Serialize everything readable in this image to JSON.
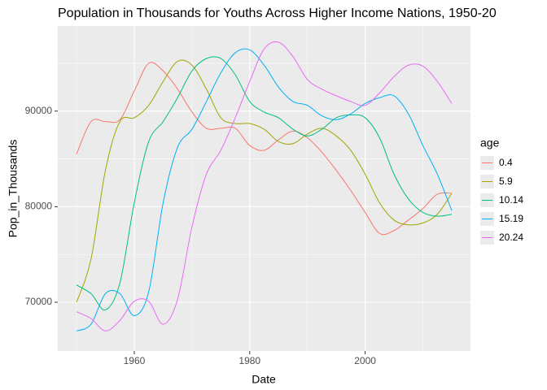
{
  "chart_data": {
    "type": "line",
    "title": "Population in Thousands for Youths Across Higher Income Nations, 1950-20",
    "x_label": "Date",
    "y_label": "Pop_in_Thousands",
    "legend_title": "age",
    "x": [
      1950,
      1952.5,
      1955,
      1957.5,
      1960,
      1962.5,
      1965,
      1967.5,
      1970,
      1972.5,
      1975,
      1977.5,
      1980,
      1982.5,
      1985,
      1987.5,
      1990,
      1992.5,
      1995,
      1997.5,
      2000,
      2002.5,
      2005,
      2007.5,
      2010,
      2012.5,
      2015
    ],
    "series": [
      {
        "name": "0.4",
        "color": "#F8766D",
        "values": [
          85500,
          88900,
          88900,
          89100,
          92100,
          95000,
          94200,
          92300,
          89900,
          88200,
          88200,
          88200,
          86400,
          85900,
          87000,
          87900,
          87200,
          85700,
          83800,
          81700,
          79400,
          77200,
          77500,
          78600,
          79800,
          81300,
          81400
        ]
      },
      {
        "name": "5.9",
        "color": "#A3A500",
        "values": [
          70000,
          74500,
          83800,
          88900,
          89300,
          90600,
          93100,
          95200,
          94800,
          92300,
          89300,
          88700,
          88700,
          88100,
          86800,
          86600,
          87600,
          88200,
          87400,
          85900,
          83400,
          80400,
          78600,
          78100,
          78300,
          79200,
          81400
        ]
      },
      {
        "name": "10.14",
        "color": "#00BF7D",
        "values": [
          71800,
          70900,
          69200,
          72000,
          80400,
          86800,
          88900,
          91400,
          94200,
          95500,
          95500,
          93800,
          91000,
          89900,
          89300,
          88100,
          87400,
          88100,
          89300,
          89600,
          89300,
          87200,
          83400,
          80800,
          79400,
          79000,
          79200
        ]
      },
      {
        "name": "15.19",
        "color": "#00B0F6",
        "values": [
          67000,
          67700,
          70900,
          70900,
          68600,
          71100,
          80400,
          86200,
          88100,
          91000,
          94000,
          96100,
          96400,
          94800,
          92500,
          91000,
          90600,
          89500,
          89100,
          89700,
          90800,
          91400,
          91600,
          89700,
          86400,
          83400,
          79600
        ]
      },
      {
        "name": "20.24",
        "color": "#E76BF3",
        "values": [
          69000,
          68300,
          67000,
          68100,
          70100,
          70100,
          67700,
          70300,
          77900,
          83400,
          85900,
          89300,
          93100,
          96500,
          97200,
          95700,
          93300,
          92300,
          91600,
          91000,
          90600,
          91900,
          93600,
          94800,
          94700,
          93100,
          90800
        ]
      }
    ],
    "xlim": [
      1946.75,
      2018.25
    ],
    "xticks": [
      1960,
      1980,
      2000
    ],
    "x_minor_ticks": [
      1950,
      1970,
      1990,
      2010
    ],
    "ylim": [
      64900,
      98900
    ],
    "yticks": [
      70000,
      80000,
      90000
    ],
    "y_minor_ticks": [
      75000,
      85000,
      95000
    ],
    "grid": true
  }
}
